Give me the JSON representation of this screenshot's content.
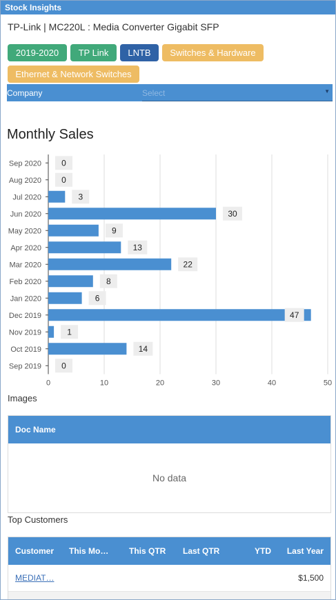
{
  "window": {
    "title": "Stock Insights"
  },
  "product": {
    "title": "TP-Link | MC220L : Media Converter Gigabit SFP"
  },
  "tags": [
    {
      "label": "2019-2020",
      "color": "#41a97a"
    },
    {
      "label": "TP Link",
      "color": "#41a97a"
    },
    {
      "label": "LNTB",
      "color": "#2f62a6"
    },
    {
      "label": "Switches & Hardware",
      "color": "#eebc63"
    },
    {
      "label": "Ethernet & Network Switches",
      "color": "#eebc63"
    }
  ],
  "company": {
    "label": "Company",
    "placeholder": "Select"
  },
  "sales": {
    "title": "Monthly Sales"
  },
  "chart_data": {
    "type": "bar",
    "orientation": "horizontal",
    "categories": [
      "Sep 2020",
      "Aug 2020",
      "Jul 2020",
      "Jun 2020",
      "May 2020",
      "Apr 2020",
      "Mar 2020",
      "Feb 2020",
      "Jan 2020",
      "Dec 2019",
      "Nov 2019",
      "Oct 2019",
      "Sep 2019"
    ],
    "values": [
      0,
      0,
      3,
      30,
      9,
      13,
      22,
      8,
      6,
      47,
      1,
      14,
      0
    ],
    "xlim": [
      0,
      50
    ],
    "xticks": [
      0,
      10,
      20,
      30,
      40,
      50
    ],
    "grid": true,
    "bar_color": "#4a8fd1"
  },
  "images": {
    "title": "Images",
    "columns": [
      "Doc Name"
    ],
    "empty_text": "No data"
  },
  "customers": {
    "title": "Top Customers",
    "columns": [
      "Customer",
      "This Mo…",
      "This QTR",
      "Last QTR",
      "YTD",
      "Last Year"
    ],
    "rows": [
      {
        "customer": "MEDIAT…",
        "this_month": "",
        "this_qtr": "",
        "last_qtr": "",
        "ytd": "",
        "last_year": "$1,500"
      }
    ]
  }
}
